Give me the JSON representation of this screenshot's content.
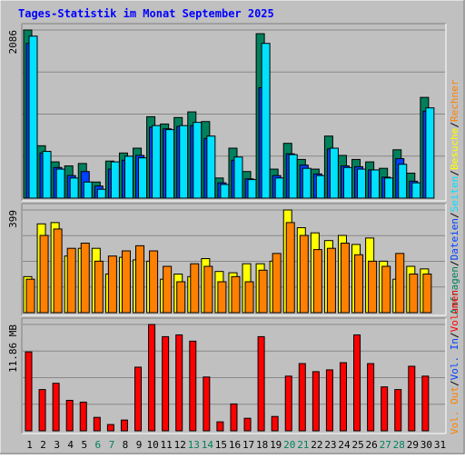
{
  "title": "Tages-Statistik im Monat September 2025",
  "colors": {
    "frame_bg": "#c0c0c0",
    "plot_bg": "#c0c0c0",
    "title": "#0000ff",
    "hits": "#00805c",
    "files": "#0040ff",
    "pages": "#00e0ff",
    "visits": "#ffff00",
    "sites": "#ff8000",
    "kbytes": "#ff0000",
    "grid": "#888888",
    "weekend_label": "#00805c"
  },
  "chart_data": [
    {
      "type": "bar",
      "panel": "requests",
      "scale_label": "2086",
      "ylim": [
        0,
        2086
      ],
      "categories": [
        "1",
        "2",
        "3",
        "4",
        "5",
        "6",
        "7",
        "8",
        "9",
        "10",
        "11",
        "12",
        "13",
        "14",
        "15",
        "16",
        "17",
        "18",
        "19",
        "20",
        "21",
        "22",
        "23",
        "24",
        "25",
        "26",
        "27",
        "28",
        "29",
        "30"
      ],
      "weekend_days": [
        "6",
        "7",
        "13",
        "14",
        "20",
        "21",
        "27",
        "28"
      ],
      "series": [
        {
          "name": "Anfragen",
          "values": [
            2086,
            650,
            450,
            400,
            430,
            200,
            460,
            560,
            620,
            1010,
            920,
            1000,
            1070,
            950,
            250,
            620,
            330,
            2040,
            360,
            680,
            480,
            360,
            770,
            530,
            480,
            450,
            370,
            600,
            310,
            1250
          ]
        },
        {
          "name": "Dateien",
          "values": [
            1920,
            560,
            380,
            280,
            330,
            150,
            360,
            470,
            530,
            880,
            860,
            890,
            900,
            740,
            190,
            470,
            240,
            1370,
            280,
            550,
            410,
            300,
            610,
            400,
            390,
            350,
            260,
            490,
            210,
            1080
          ]
        },
        {
          "name": "Seiten",
          "values": [
            2010,
            580,
            360,
            250,
            200,
            110,
            450,
            520,
            500,
            900,
            850,
            900,
            940,
            770,
            170,
            510,
            230,
            1920,
            250,
            540,
            370,
            280,
            620,
            380,
            360,
            350,
            250,
            420,
            190,
            1120
          ]
        }
      ]
    },
    {
      "type": "bar",
      "panel": "visits",
      "scale_label": "399",
      "ylim": [
        0,
        399
      ],
      "categories": [
        "1",
        "2",
        "3",
        "4",
        "5",
        "6",
        "7",
        "8",
        "9",
        "10",
        "11",
        "12",
        "13",
        "14",
        "15",
        "16",
        "17",
        "18",
        "19",
        "20",
        "21",
        "22",
        "23",
        "24",
        "25",
        "26",
        "27",
        "28",
        "29",
        "30"
      ],
      "series": [
        {
          "name": "Besuche",
          "values": [
            140,
            345,
            350,
            220,
            250,
            250,
            150,
            215,
            205,
            200,
            130,
            150,
            140,
            210,
            160,
            155,
            190,
            190,
            200,
            399,
            330,
            310,
            280,
            300,
            265,
            290,
            200,
            130,
            180,
            170
          ]
        },
        {
          "name": "Rechner",
          "values": [
            130,
            300,
            325,
            250,
            270,
            200,
            220,
            240,
            260,
            240,
            180,
            120,
            190,
            180,
            120,
            140,
            120,
            165,
            230,
            350,
            300,
            245,
            250,
            270,
            225,
            200,
            180,
            230,
            150,
            150
          ]
        }
      ]
    },
    {
      "type": "bar",
      "panel": "volume",
      "scale_label": "11.86 MB",
      "ylim": [
        0,
        11.86
      ],
      "categories": [
        "1",
        "2",
        "3",
        "4",
        "5",
        "6",
        "7",
        "8",
        "9",
        "10",
        "11",
        "12",
        "13",
        "14",
        "15",
        "16",
        "17",
        "18",
        "19",
        "20",
        "21",
        "22",
        "23",
        "24",
        "25",
        "26",
        "27",
        "28",
        "29",
        "30"
      ],
      "series": [
        {
          "name": "Volumen",
          "values": [
            8.8,
            4.6,
            5.3,
            3.4,
            3.2,
            1.5,
            0.7,
            1.2,
            7.1,
            11.86,
            10.5,
            10.7,
            10.0,
            6.0,
            1.0,
            3.0,
            1.4,
            10.5,
            1.6,
            6.1,
            7.5,
            6.6,
            6.8,
            7.6,
            10.7,
            7.5,
            4.9,
            4.6,
            7.2,
            6.1
          ]
        }
      ]
    }
  ],
  "right_legend_top": {
    "items": [
      "Anfragen",
      "Dateien",
      "Seiten",
      "Besuche",
      "Rechner"
    ]
  },
  "right_legend_bottom": {
    "items": [
      "Vol. Out",
      "Vol. In",
      "Volumen"
    ]
  },
  "x_labels": [
    "1",
    "2",
    "3",
    "4",
    "5",
    "6",
    "7",
    "8",
    "9",
    "10",
    "11",
    "12",
    "13",
    "14",
    "15",
    "16",
    "17",
    "18",
    "19",
    "20",
    "21",
    "22",
    "23",
    "24",
    "25",
    "26",
    "27",
    "28",
    "29",
    "30",
    "31"
  ]
}
